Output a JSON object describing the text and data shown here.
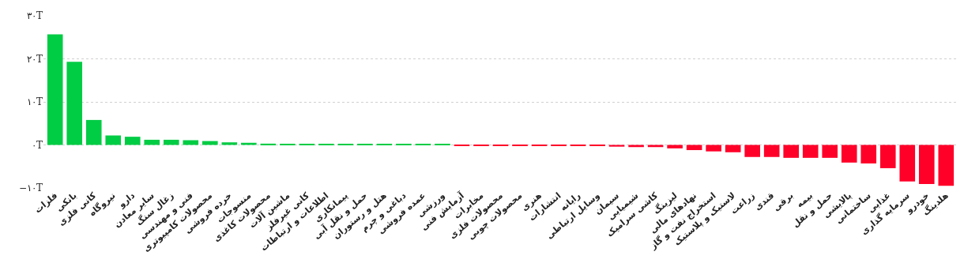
{
  "chart_data": {
    "type": "bar",
    "categories": [
      "فلزات",
      "بانکی",
      "کانی فلزی",
      "نیروگاه",
      "دارو",
      "سایر معادن",
      "زغال سنگ",
      "فنی و مهندسی",
      "محصولات کامپیوتری",
      "خرده فروشی",
      "منسوجات",
      "محصولات کاغذی",
      "ماشین آلات",
      "کانی غیرفلز",
      "اطلاعات و ارتباطات",
      "پیمانکاری",
      "حمل و نقل آبی",
      "هتل و رستوران",
      "دباغی و چرم",
      "عمده فروشی",
      "ورزشی",
      "آزمایش فنی",
      "مخابرات",
      "محصولات فلزی",
      "محصولات چوبی",
      "هنری",
      "انتشارات",
      "رایانه",
      "وسایل ارتباطی",
      "سیمان",
      "شیمیایی",
      "کاشی سرامیک",
      "لیزینگ",
      "نهادهای مالی",
      "استخراج نفت و گاز",
      "لاستیک و پلاستیک",
      "زراعت",
      "قندی",
      "برقی",
      "بیمه",
      "حمل و نقل",
      "پالایشی",
      "ساختمانی",
      "غذایی",
      "سرمایه گذاری",
      "خودرو",
      "هلدینگ"
    ],
    "values": [
      25.7,
      19.3,
      5.8,
      2.2,
      1.9,
      1.2,
      1.2,
      1.1,
      0.9,
      0.6,
      0.5,
      0.3,
      0.2,
      0.2,
      0.1,
      0.1,
      0.1,
      0.1,
      0.1,
      0.1,
      0.1,
      -0.1,
      -0.1,
      -0.1,
      -0.1,
      -0.1,
      -0.1,
      -0.2,
      -0.2,
      -0.4,
      -0.5,
      -0.5,
      -0.8,
      -1.2,
      -1.5,
      -1.7,
      -2.8,
      -2.8,
      -3.0,
      -3.0,
      -3.0,
      -4.1,
      -4.3,
      -5.4,
      -8.5,
      -9.1,
      -9.5
    ],
    "colors": [
      "#00cc44",
      "#00cc44",
      "#00cc44",
      "#00cc44",
      "#00cc44",
      "#00cc44",
      "#00cc44",
      "#00cc44",
      "#00cc44",
      "#00cc44",
      "#00cc44",
      "#00cc44",
      "#00cc44",
      "#00cc44",
      "#00cc44",
      "#00cc44",
      "#00cc44",
      "#00cc44",
      "#00cc44",
      "#00cc44",
      "#00cc44",
      "#ff0029",
      "#ff0029",
      "#ff0029",
      "#ff0029",
      "#ff0029",
      "#ff0029",
      "#ff0029",
      "#ff0029",
      "#ff0029",
      "#ff0029",
      "#ff0029",
      "#ff0029",
      "#ff0029",
      "#ff0029",
      "#ff0029",
      "#ff0029",
      "#ff0029",
      "#ff0029",
      "#ff0029",
      "#ff0029",
      "#ff0029",
      "#ff0029",
      "#ff0029",
      "#ff0029",
      "#ff0029",
      "#ff0029"
    ],
    "ylim": [
      -10,
      30
    ],
    "yticks": [
      {
        "value": -10,
        "label": "−۱۰T"
      },
      {
        "value": 0,
        "label": "۰T"
      },
      {
        "value": 10,
        "label": "۱۰T"
      },
      {
        "value": 20,
        "label": "۲۰T"
      },
      {
        "value": 30,
        "label": "۳۰T"
      }
    ],
    "grid": "y"
  }
}
